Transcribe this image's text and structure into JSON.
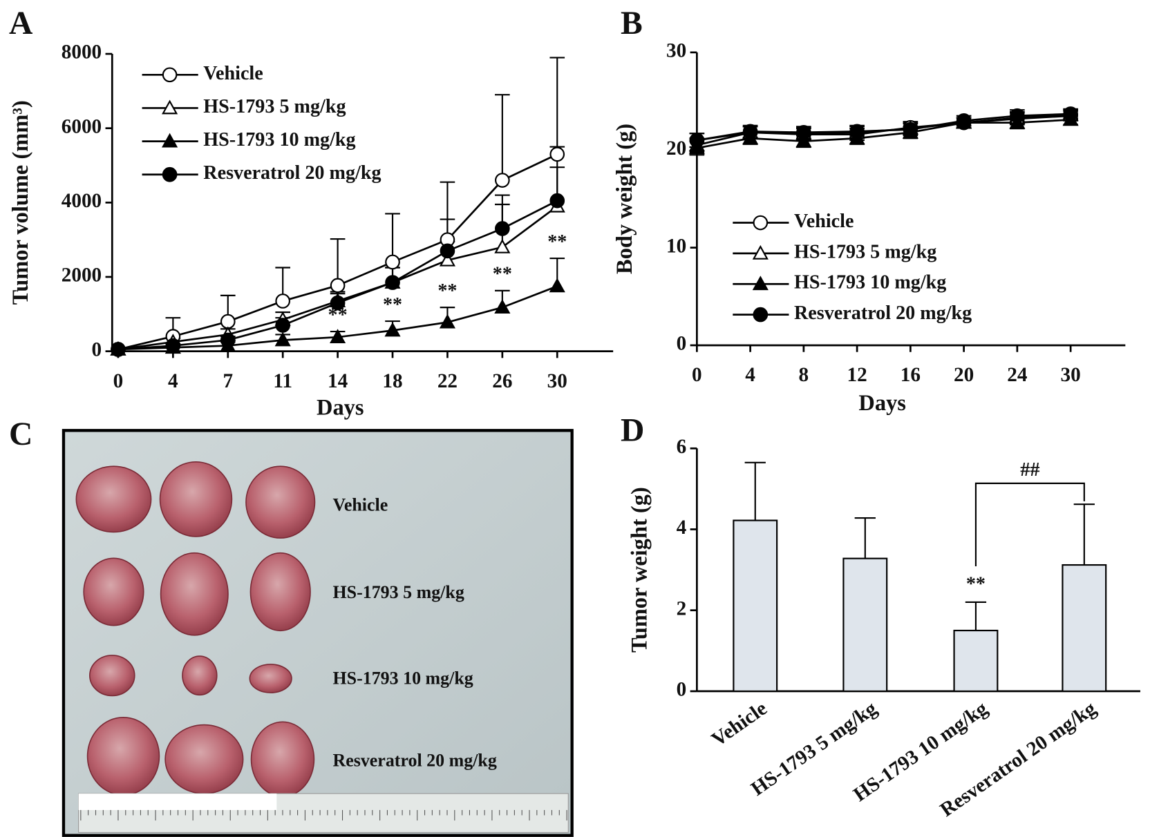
{
  "chart_data": [
    {
      "type": "line",
      "panel_label": "A",
      "x_label": "Days",
      "y_label": "Tumor volume (mm³)",
      "categories": [
        "0",
        "4",
        "7",
        "11",
        "14",
        "18",
        "22",
        "26",
        "30"
      ],
      "ylim": [
        0,
        8000
      ],
      "yticks": [
        0,
        2000,
        4000,
        6000,
        8000
      ],
      "error_bars": "up",
      "series": [
        {
          "name": "Vehicle",
          "color": "#000000",
          "marker": "circle",
          "filled": false,
          "values": [
            50,
            400,
            800,
            1350,
            1770,
            2400,
            3000,
            4600,
            5300
          ],
          "errors": [
            0,
            500,
            700,
            900,
            1250,
            1300,
            1550,
            2300,
            2600
          ]
        },
        {
          "name": "HS-1793 5 mg/kg",
          "color": "#000000",
          "marker": "triangle",
          "filled": false,
          "values": [
            50,
            250,
            450,
            850,
            1350,
            1850,
            2450,
            2800,
            3900
          ],
          "errors": [
            0,
            100,
            150,
            200,
            250,
            400,
            500,
            1400,
            1600
          ]
        },
        {
          "name": "HS-1793 10 mg/kg",
          "color": "#000000",
          "marker": "triangle",
          "filled": true,
          "values": [
            50,
            100,
            150,
            300,
            380,
            560,
            780,
            1180,
            1750
          ],
          "errors": [
            0,
            50,
            100,
            150,
            150,
            250,
            400,
            450,
            750
          ],
          "annotations": [
            null,
            null,
            null,
            null,
            "**",
            "**",
            "**",
            "**",
            "**"
          ]
        },
        {
          "name": "Resveratrol 20 mg/kg",
          "color": "#000000",
          "marker": "circle",
          "filled": true,
          "values": [
            50,
            150,
            300,
            700,
            1300,
            1850,
            2700,
            3300,
            4050
          ],
          "errors": [
            0,
            50,
            100,
            200,
            250,
            400,
            850,
            650,
            900
          ]
        }
      ]
    },
    {
      "type": "line",
      "panel_label": "B",
      "x_label": "Days",
      "y_label": "Body weight (g)",
      "categories": [
        "0",
        "4",
        "8",
        "12",
        "16",
        "20",
        "24",
        "30"
      ],
      "ylim": [
        0,
        30
      ],
      "yticks": [
        0,
        10,
        20,
        30
      ],
      "error_bars": "both",
      "series": [
        {
          "name": "Vehicle",
          "color": "#000000",
          "marker": "circle",
          "filled": false,
          "values": [
            21,
            21.8,
            21.6,
            21.6,
            22.3,
            22.8,
            23.2,
            23.5
          ],
          "errors": [
            0.7,
            0.6,
            0.6,
            0.6,
            0.6,
            0.5,
            0.6,
            0.5
          ]
        },
        {
          "name": "HS-1793 5 mg/kg",
          "color": "#000000",
          "marker": "triangle",
          "filled": false,
          "values": [
            20.5,
            21.8,
            21.7,
            21.8,
            22.2,
            22.8,
            23.3,
            23.6
          ],
          "errors": [
            0.7,
            0.6,
            0.6,
            0.6,
            0.6,
            0.5,
            0.6,
            0.5
          ]
        },
        {
          "name": "HS-1793 10 mg/kg",
          "color": "#000000",
          "marker": "triangle",
          "filled": true,
          "values": [
            20.2,
            21.2,
            20.9,
            21.2,
            21.8,
            22.8,
            22.8,
            23.1
          ],
          "errors": [
            0.7,
            0.6,
            0.6,
            0.6,
            0.6,
            0.5,
            0.6,
            0.5
          ]
        },
        {
          "name": "Resveratrol 20 mg/kg",
          "color": "#000000",
          "marker": "circle",
          "filled": true,
          "values": [
            21,
            21.9,
            21.8,
            21.9,
            22.1,
            23,
            23.5,
            23.7
          ],
          "errors": [
            0.7,
            0.6,
            0.6,
            0.6,
            0.6,
            0.5,
            0.6,
            0.5
          ]
        }
      ]
    },
    {
      "type": "bar",
      "panel_label": "D",
      "y_label": "Tumor weight (g)",
      "categories": [
        "Vehicle",
        "HS-1793 5 mg/kg",
        "HS-1793 10 mg/kg",
        "Resveratrol 20 mg/kg"
      ],
      "values": [
        4.22,
        3.28,
        1.5,
        3.12
      ],
      "errors": [
        1.43,
        1.0,
        0.7,
        1.5
      ],
      "color": "#dfe5ec",
      "ylim": [
        0,
        6
      ],
      "yticks": [
        0,
        2,
        4,
        6
      ],
      "annotations": [
        null,
        null,
        "**",
        null
      ],
      "comparison": {
        "label": "##",
        "between": [
          "HS-1793 10 mg/kg",
          "Resveratrol 20 mg/kg"
        ]
      }
    }
  ],
  "photo": {
    "panel_label": "C",
    "labels": [
      "Vehicle",
      "HS-1793 5 mg/kg",
      "HS-1793 10 mg/kg",
      "Resveratrol 20 mg/kg"
    ]
  }
}
